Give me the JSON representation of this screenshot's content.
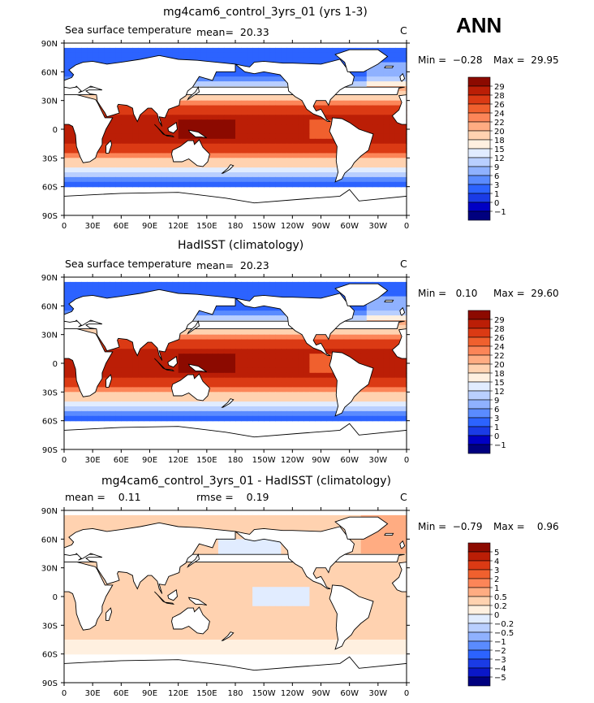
{
  "season": "ANN",
  "colors": {
    "sst": [
      "#00007f",
      "#0000c4",
      "#1a3be6",
      "#2c63ff",
      "#5a8bff",
      "#8fb1ff",
      "#b9cfff",
      "#e1ecff",
      "#fff0e0",
      "#ffd2b0",
      "#ffac82",
      "#fc8558",
      "#f0602e",
      "#db3a14",
      "#bb1e06",
      "#8c0a00"
    ],
    "diff": [
      "#00007f",
      "#0a17c8",
      "#1a3be6",
      "#2c63ff",
      "#5a8bff",
      "#8fb1ff",
      "#b9cfff",
      "#e1ecff",
      "#fff0e0",
      "#ffd2b0",
      "#ffac82",
      "#fc8558",
      "#f0602e",
      "#db3a14",
      "#bb1e06",
      "#8c0a00"
    ],
    "land": "#ffffff",
    "coast": "#000000"
  },
  "panels": [
    {
      "title": "mg4cam6_control_3yrs_01 (yrs 1-3)",
      "left_label": "Sea surface temperature",
      "mean_text": "mean=  20.33",
      "unit": "C",
      "min_text": "Min =  −0.28",
      "max_text": "Max =  29.95",
      "colorbar_labels": [
        "29",
        "28",
        "26",
        "24",
        "22",
        "20",
        "18",
        "15",
        "12",
        "9",
        "6",
        "3",
        "1",
        "0",
        "−1"
      ]
    },
    {
      "title": "HadISST (climatology)",
      "left_label": "Sea surface temperature",
      "mean_text": "mean=  20.23",
      "unit": "C",
      "min_text": "Min =   0.10",
      "max_text": "Max =  29.60",
      "colorbar_labels": [
        "29",
        "28",
        "26",
        "24",
        "22",
        "20",
        "18",
        "15",
        "12",
        "9",
        "6",
        "3",
        "1",
        "0",
        "−1"
      ]
    },
    {
      "title": "mg4cam6_control_3yrs_01 - HadISST (climatology)",
      "left_label": "mean =    0.11",
      "mean_text": "rmse =    0.19",
      "unit": "C",
      "min_text": "Min =  −0.79",
      "max_text": "Max =    0.96",
      "colorbar_labels": [
        "5",
        "4",
        "3",
        "2",
        "1",
        "0.5",
        "0.2",
        "0",
        "−0.2",
        "−0.5",
        "−1",
        "−2",
        "−3",
        "−4",
        "−5"
      ]
    }
  ],
  "chart_data": [
    {
      "type": "heatmap",
      "title": "mg4cam6_control_3yrs_01 (yrs 1-3)",
      "variable": "Sea surface temperature",
      "units": "C",
      "mean": 20.33,
      "min": -0.28,
      "max": 29.95,
      "x_ticks": [
        "0",
        "30E",
        "60E",
        "90E",
        "120E",
        "150E",
        "180",
        "150W",
        "120W",
        "90W",
        "60W",
        "30W",
        "0"
      ],
      "y_ticks": [
        "90N",
        "60N",
        "30N",
        "0",
        "30S",
        "60S",
        "90S"
      ],
      "xlim": [
        0,
        360
      ],
      "ylim": [
        -90,
        90
      ],
      "contour_levels": [
        -1,
        0,
        1,
        3,
        6,
        9,
        12,
        15,
        18,
        20,
        22,
        24,
        26,
        28,
        29
      ],
      "zonal_profile": {
        "lat": [
          80,
          70,
          60,
          50,
          40,
          30,
          20,
          10,
          0,
          -10,
          -20,
          -30,
          -40,
          -50,
          -60
        ],
        "value": [
          0,
          3,
          8,
          13,
          18,
          22,
          26,
          28,
          28,
          28,
          25,
          19,
          13,
          6,
          0
        ]
      }
    },
    {
      "type": "heatmap",
      "title": "HadISST (climatology)",
      "variable": "Sea surface temperature",
      "units": "C",
      "mean": 20.23,
      "min": 0.1,
      "max": 29.6,
      "x_ticks": [
        "0",
        "30E",
        "60E",
        "90E",
        "120E",
        "150E",
        "180",
        "150W",
        "120W",
        "90W",
        "60W",
        "30W",
        "0"
      ],
      "y_ticks": [
        "90N",
        "60N",
        "30N",
        "0",
        "30S",
        "60S",
        "90S"
      ],
      "xlim": [
        0,
        360
      ],
      "ylim": [
        -90,
        90
      ],
      "contour_levels": [
        -1,
        0,
        1,
        3,
        6,
        9,
        12,
        15,
        18,
        20,
        22,
        24,
        26,
        28,
        29
      ],
      "zonal_profile": {
        "lat": [
          80,
          70,
          60,
          50,
          40,
          30,
          20,
          10,
          0,
          -10,
          -20,
          -30,
          -40,
          -50,
          -60
        ],
        "value": [
          0,
          3,
          8,
          13,
          18,
          22,
          26,
          28,
          28,
          28,
          25,
          19,
          13,
          6,
          0
        ]
      }
    },
    {
      "type": "heatmap",
      "title": "mg4cam6_control_3yrs_01 - HadISST (climatology)",
      "units": "C",
      "mean": 0.11,
      "rmse": 0.19,
      "min": -0.79,
      "max": 0.96,
      "x_ticks": [
        "0",
        "30E",
        "60E",
        "90E",
        "120E",
        "150E",
        "180",
        "150W",
        "120W",
        "90W",
        "60W",
        "30W",
        "0"
      ],
      "y_ticks": [
        "90N",
        "60N",
        "30N",
        "0",
        "30S",
        "60S",
        "90S"
      ],
      "xlim": [
        0,
        360
      ],
      "ylim": [
        -90,
        90
      ],
      "contour_levels": [
        -5,
        -4,
        -3,
        -2,
        -1,
        -0.5,
        -0.2,
        0,
        0.2,
        0.5,
        1,
        2,
        3,
        4,
        5
      ]
    }
  ]
}
